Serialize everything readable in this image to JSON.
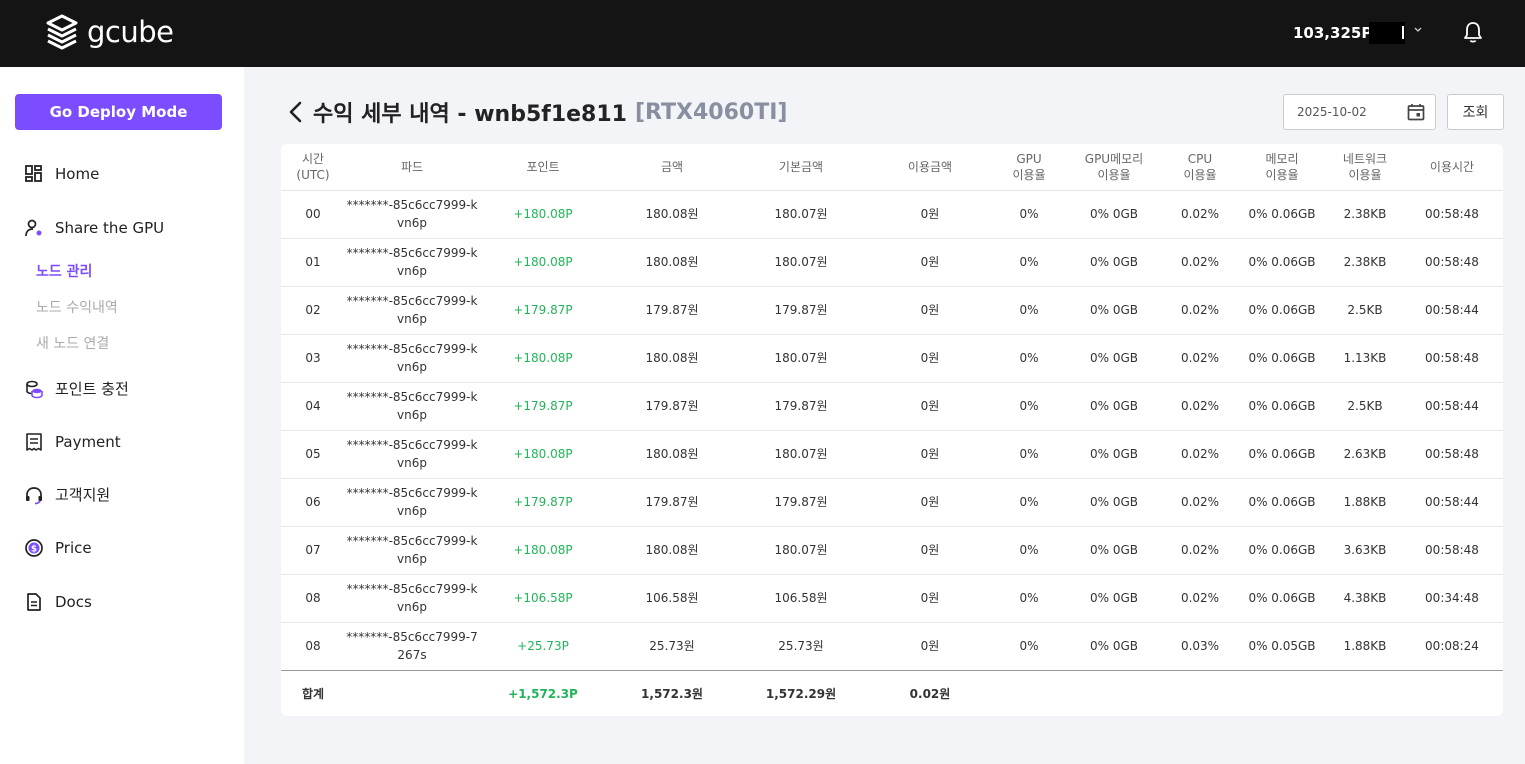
{
  "topbar": {
    "logo_text": "gcube",
    "points": "103,325P"
  },
  "sidebar": {
    "deploy_button": "Go Deploy Mode",
    "items": [
      {
        "label": "Home",
        "icon": "dashboard-icon"
      },
      {
        "label": "Share the GPU",
        "icon": "user-gear-icon"
      },
      {
        "label": "포인트 충전",
        "icon": "coins-icon"
      },
      {
        "label": "Payment",
        "icon": "receipt-icon"
      },
      {
        "label": "고객지원",
        "icon": "headset-icon"
      },
      {
        "label": "Price",
        "icon": "dollar-circle-icon"
      },
      {
        "label": "Docs",
        "icon": "document-icon"
      }
    ],
    "sub_items": [
      {
        "label": "노드 관리",
        "active": true
      },
      {
        "label": "노드 수익내역",
        "active": false
      },
      {
        "label": "새 노드 연결",
        "active": false
      }
    ]
  },
  "header": {
    "title": "수익 세부 내역 - wnb5f1e811",
    "gpu": "[RTX4060TI]",
    "date": "2025-10-02",
    "query_button": "조회"
  },
  "table": {
    "columns": [
      [
        "시간",
        "(UTC)"
      ],
      [
        "파드",
        ""
      ],
      [
        "포인트",
        ""
      ],
      [
        "금액",
        ""
      ],
      [
        "기본금액",
        ""
      ],
      [
        "이용금액",
        ""
      ],
      [
        "GPU",
        "이용율"
      ],
      [
        "GPU메모리",
        "이용율"
      ],
      [
        "CPU",
        "이용율"
      ],
      [
        "메모리",
        "이용율"
      ],
      [
        "네트워크",
        "이용율"
      ],
      [
        "이용시간",
        ""
      ]
    ],
    "rows": [
      {
        "time": "00",
        "pod1": "*******-85c6cc7999-k",
        "pod2": "vn6p",
        "point": "+180.08P",
        "amount": "180.08원",
        "base": "180.07원",
        "usage": "0원",
        "gpu": "0%",
        "gpumem": "0% 0GB",
        "cpu": "0.02%",
        "mem": "0% 0.06GB",
        "net": "2.38KB",
        "duration": "00:58:48"
      },
      {
        "time": "01",
        "pod1": "*******-85c6cc7999-k",
        "pod2": "vn6p",
        "point": "+180.08P",
        "amount": "180.08원",
        "base": "180.07원",
        "usage": "0원",
        "gpu": "0%",
        "gpumem": "0% 0GB",
        "cpu": "0.02%",
        "mem": "0% 0.06GB",
        "net": "2.38KB",
        "duration": "00:58:48"
      },
      {
        "time": "02",
        "pod1": "*******-85c6cc7999-k",
        "pod2": "vn6p",
        "point": "+179.87P",
        "amount": "179.87원",
        "base": "179.87원",
        "usage": "0원",
        "gpu": "0%",
        "gpumem": "0% 0GB",
        "cpu": "0.02%",
        "mem": "0% 0.06GB",
        "net": "2.5KB",
        "duration": "00:58:44"
      },
      {
        "time": "03",
        "pod1": "*******-85c6cc7999-k",
        "pod2": "vn6p",
        "point": "+180.08P",
        "amount": "180.08원",
        "base": "180.07원",
        "usage": "0원",
        "gpu": "0%",
        "gpumem": "0% 0GB",
        "cpu": "0.02%",
        "mem": "0% 0.06GB",
        "net": "1.13KB",
        "duration": "00:58:48"
      },
      {
        "time": "04",
        "pod1": "*******-85c6cc7999-k",
        "pod2": "vn6p",
        "point": "+179.87P",
        "amount": "179.87원",
        "base": "179.87원",
        "usage": "0원",
        "gpu": "0%",
        "gpumem": "0% 0GB",
        "cpu": "0.02%",
        "mem": "0% 0.06GB",
        "net": "2.5KB",
        "duration": "00:58:44"
      },
      {
        "time": "05",
        "pod1": "*******-85c6cc7999-k",
        "pod2": "vn6p",
        "point": "+180.08P",
        "amount": "180.08원",
        "base": "180.07원",
        "usage": "0원",
        "gpu": "0%",
        "gpumem": "0% 0GB",
        "cpu": "0.02%",
        "mem": "0% 0.06GB",
        "net": "2.63KB",
        "duration": "00:58:48"
      },
      {
        "time": "06",
        "pod1": "*******-85c6cc7999-k",
        "pod2": "vn6p",
        "point": "+179.87P",
        "amount": "179.87원",
        "base": "179.87원",
        "usage": "0원",
        "gpu": "0%",
        "gpumem": "0% 0GB",
        "cpu": "0.02%",
        "mem": "0% 0.06GB",
        "net": "1.88KB",
        "duration": "00:58:44"
      },
      {
        "time": "07",
        "pod1": "*******-85c6cc7999-k",
        "pod2": "vn6p",
        "point": "+180.08P",
        "amount": "180.08원",
        "base": "180.07원",
        "usage": "0원",
        "gpu": "0%",
        "gpumem": "0% 0GB",
        "cpu": "0.02%",
        "mem": "0% 0.06GB",
        "net": "3.63KB",
        "duration": "00:58:48"
      },
      {
        "time": "08",
        "pod1": "*******-85c6cc7999-k",
        "pod2": "vn6p",
        "point": "+106.58P",
        "amount": "106.58원",
        "base": "106.58원",
        "usage": "0원",
        "gpu": "0%",
        "gpumem": "0% 0GB",
        "cpu": "0.02%",
        "mem": "0% 0.06GB",
        "net": "4.38KB",
        "duration": "00:34:48"
      },
      {
        "time": "08",
        "pod1": "*******-85c6cc7999-7",
        "pod2": "267s",
        "point": "+25.73P",
        "amount": "25.73원",
        "base": "25.73원",
        "usage": "0원",
        "gpu": "0%",
        "gpumem": "0% 0GB",
        "cpu": "0.03%",
        "mem": "0% 0.05GB",
        "net": "1.88KB",
        "duration": "00:08:24"
      }
    ],
    "total": {
      "label": "합계",
      "point": "+1,572.3P",
      "amount": "1,572.3원",
      "base": "1,572.29원",
      "usage": "0.02원"
    }
  },
  "colors": {
    "accent": "#7c4dff",
    "positive": "#22b45a",
    "topbar": "#141414"
  }
}
